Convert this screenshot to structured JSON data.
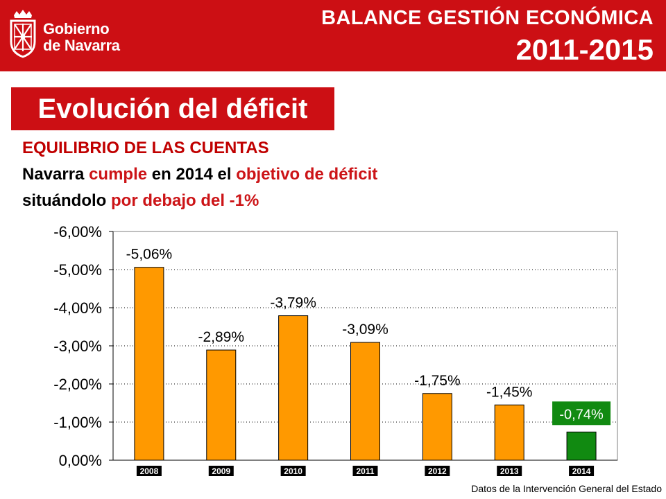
{
  "header": {
    "logo_line1": "Gobierno",
    "logo_line2": "de Navarra",
    "title": "BALANCE GESTIÓN ECONÓMICA",
    "years": "2011-2015"
  },
  "section_title": "Evolución del déficit",
  "intro": "EQUILIBRIO  DE LAS CUENTAS",
  "statement": {
    "line1": {
      "a": "Navarra ",
      "b": "cumple",
      "c": " en 2014 el ",
      "d": "objetivo de déficit"
    },
    "line2": {
      "a": "situándolo ",
      "b": "por debajo del -1%"
    }
  },
  "chart_data": {
    "type": "bar",
    "categories": [
      "2008",
      "2009",
      "2010",
      "2011",
      "2012",
      "2013",
      "2014"
    ],
    "values": [
      -5.06,
      -2.89,
      -3.79,
      -3.09,
      -1.75,
      -1.45,
      -0.74
    ],
    "data_labels": [
      "-5,06%",
      "-2,89%",
      "-3,79%",
      "-3,09%",
      "-1,75%",
      "-1,45%",
      "-0,74%"
    ],
    "yticks": [
      "0,00%",
      "-1,00%",
      "-2,00%",
      "-3,00%",
      "-4,00%",
      "-5,00%",
      "-6,00%"
    ],
    "ylim": [
      0,
      -6
    ],
    "ytick_step": -1,
    "reversed_axis": true,
    "grid": true,
    "colors": {
      "default": "#ff9900",
      "highlight": "#118a11",
      "highlight_label_bg": "#118a11"
    },
    "highlight_index": 6,
    "title": "",
    "xlabel": "",
    "ylabel": ""
  },
  "footer": {
    "source": "Datos de la Intervención General del Estado"
  }
}
